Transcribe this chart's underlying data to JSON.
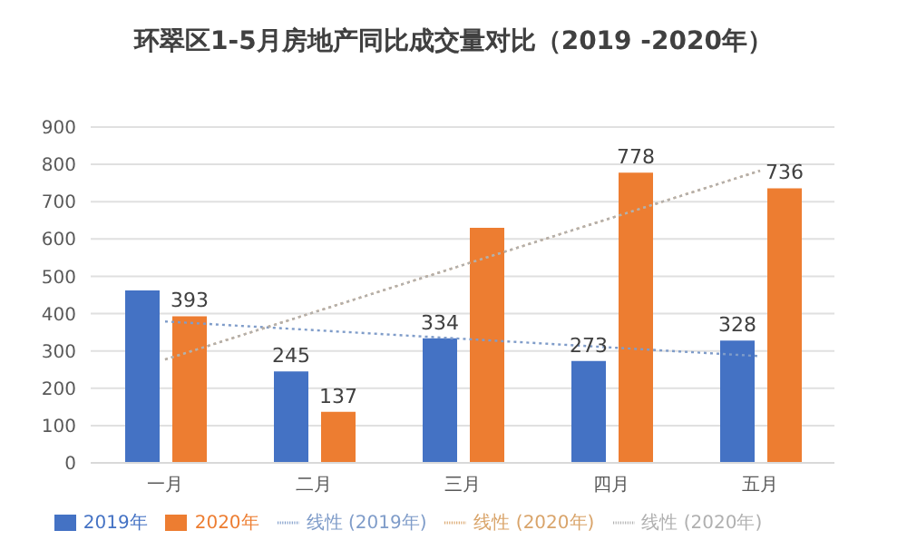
{
  "chart_data": {
    "type": "bar",
    "title": "环翠区1-5月房地产同比成交量对比（2019 -2020年）",
    "categories": [
      "一月",
      "二月",
      "三月",
      "四月",
      "五月"
    ],
    "series": [
      {
        "name": "2019年",
        "color": "#4472c4",
        "values": [
          462,
          245,
          334,
          273,
          328
        ],
        "value_labels": [
          null,
          "245",
          "334",
          "273",
          "328"
        ]
      },
      {
        "name": "2020年",
        "color": "#ed7d31",
        "values": [
          393,
          137,
          630,
          778,
          736
        ],
        "value_labels": [
          "393",
          "137",
          null,
          "778",
          "736"
        ]
      },
      {
        "name": "线性 (2019年)",
        "type": "line",
        "color": "#7f9cc9",
        "line_style": "dotted",
        "values": [
          379,
          null,
          null,
          null,
          286
        ]
      },
      {
        "name": "线性 (2020年)",
        "type": "line",
        "color": "#d9a46a",
        "line_style": "dotted",
        "values": [
          277,
          null,
          null,
          null,
          783
        ]
      },
      {
        "name": "线性 (2020年)",
        "type": "line",
        "color": "#b0b0b0",
        "line_style": "dotted",
        "values": [
          277,
          null,
          null,
          null,
          783
        ]
      }
    ],
    "ylim": [
      0,
      900
    ],
    "yticks": [
      0,
      100,
      200,
      300,
      400,
      500,
      600,
      700,
      800,
      900
    ],
    "grid": "y",
    "legend": "bottom"
  }
}
